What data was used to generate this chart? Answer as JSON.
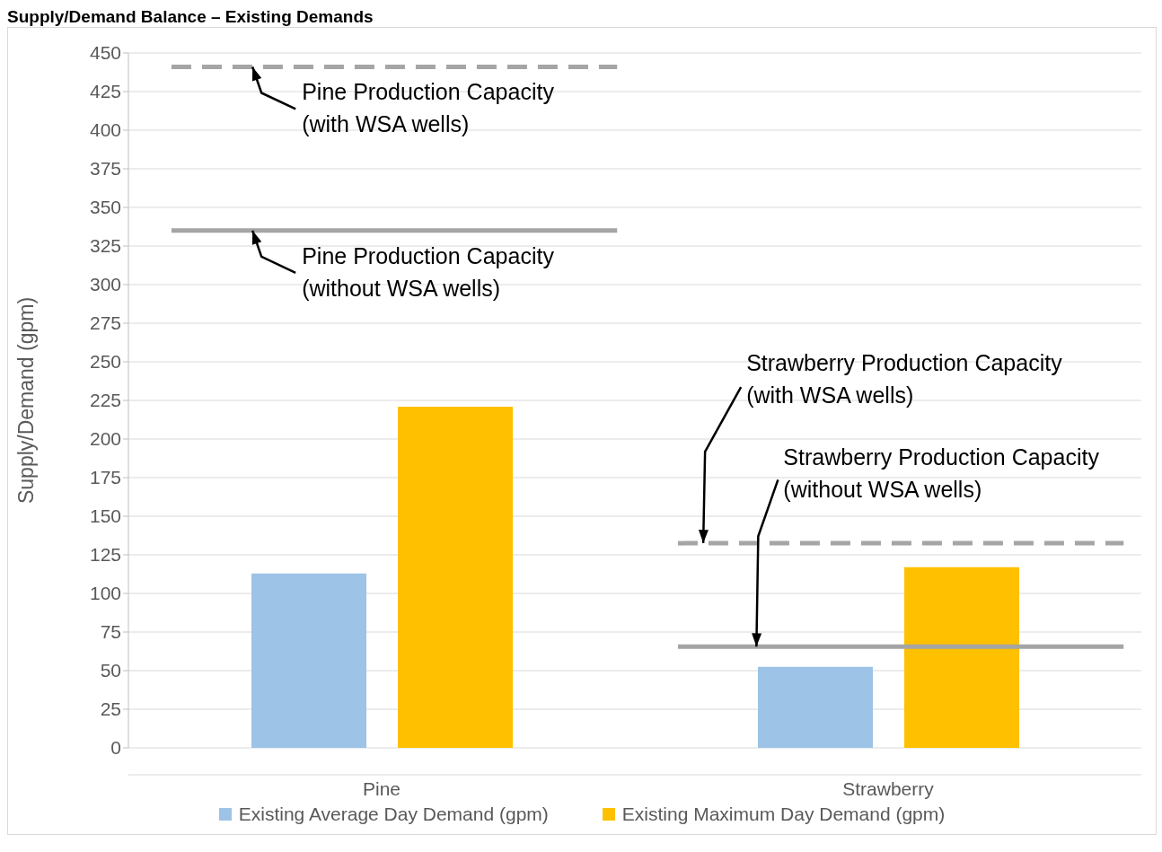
{
  "chart_data": {
    "type": "bar",
    "title": "Supply/Demand Balance – Existing Demands",
    "ylabel": "Supply/Demand (gpm)",
    "categories": [
      "Pine",
      "Strawberry"
    ],
    "series": [
      {
        "name": "Existing Average Day Demand (gpm)",
        "color": "#9dc3e6",
        "values": [
          113,
          52.5
        ]
      },
      {
        "name": "Existing Maximum Day Demand (gpm)",
        "color": "#ffc000",
        "values": [
          221,
          117
        ]
      }
    ],
    "ref_lines": [
      {
        "axis": "y",
        "value": 441,
        "label": "Pine Production Capacity\n(with WSA wells)",
        "color": "#a5a5a5",
        "line_style": "dashed"
      },
      {
        "axis": "y",
        "value": 335,
        "label": "Pine Production Capacity\n(without WSA wells)",
        "color": "#a5a5a5",
        "line_style": "solid"
      },
      {
        "axis": "y",
        "value": 132.5,
        "label": "Strawberry Production Capacity\n(with WSA wells)",
        "color": "#a5a5a5",
        "line_style": "dashed"
      },
      {
        "axis": "y",
        "value": 65.5,
        "label": "Strawberry Production Capacity\n(without WSA wells)",
        "color": "#a5a5a5",
        "line_style": "solid"
      }
    ],
    "ylim": [
      0,
      450
    ],
    "yticks": [
      0,
      25,
      50,
      75,
      100,
      125,
      150,
      175,
      200,
      225,
      250,
      275,
      300,
      325,
      350,
      375,
      400,
      425,
      450
    ],
    "grid": "y",
    "legend": "bottom"
  }
}
